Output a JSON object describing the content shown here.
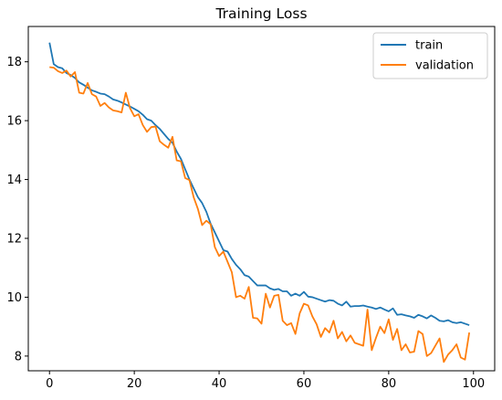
{
  "chart_data": {
    "type": "line",
    "title": "Training Loss",
    "xlabel": "",
    "ylabel": "",
    "xlim": [
      -5,
      105
    ],
    "ylim": [
      7.5,
      19.2
    ],
    "xticks": [
      0,
      20,
      40,
      60,
      80,
      100
    ],
    "yticks": [
      8,
      10,
      12,
      14,
      16,
      18
    ],
    "xtick_labels": [
      "0",
      "20",
      "40",
      "60",
      "80",
      "100"
    ],
    "ytick_labels": [
      "8",
      "10",
      "12",
      "14",
      "16",
      "18"
    ],
    "grid": false,
    "legend_position": "top-right",
    "x": [
      0,
      1,
      2,
      3,
      4,
      5,
      6,
      7,
      8,
      9,
      10,
      11,
      12,
      13,
      14,
      15,
      16,
      17,
      18,
      19,
      20,
      21,
      22,
      23,
      24,
      25,
      26,
      27,
      28,
      29,
      30,
      31,
      32,
      33,
      34,
      35,
      36,
      37,
      38,
      39,
      40,
      41,
      42,
      43,
      44,
      45,
      46,
      47,
      48,
      49,
      50,
      51,
      52,
      53,
      54,
      55,
      56,
      57,
      58,
      59,
      60,
      61,
      62,
      63,
      64,
      65,
      66,
      67,
      68,
      69,
      70,
      71,
      72,
      73,
      74,
      75,
      76,
      77,
      78,
      79,
      80,
      81,
      82,
      83,
      84,
      85,
      86,
      87,
      88,
      89,
      90,
      91,
      92,
      93,
      94,
      95,
      96,
      97,
      98,
      99
    ],
    "series": [
      {
        "name": "train",
        "color": "#1f77b4",
        "values": [
          18.65,
          17.92,
          17.82,
          17.78,
          17.62,
          17.55,
          17.45,
          17.3,
          17.22,
          17.12,
          17.03,
          16.98,
          16.92,
          16.9,
          16.82,
          16.72,
          16.68,
          16.62,
          16.55,
          16.48,
          16.4,
          16.32,
          16.2,
          16.05,
          16.0,
          15.85,
          15.72,
          15.55,
          15.38,
          15.25,
          14.95,
          14.7,
          14.35,
          14.0,
          13.7,
          13.4,
          13.2,
          12.9,
          12.5,
          12.2,
          11.9,
          11.6,
          11.55,
          11.3,
          11.1,
          10.95,
          10.75,
          10.7,
          10.55,
          10.4,
          10.4,
          10.4,
          10.3,
          10.25,
          10.28,
          10.2,
          10.2,
          10.05,
          10.12,
          10.05,
          10.18,
          10.02,
          10.0,
          9.95,
          9.9,
          9.85,
          9.9,
          9.88,
          9.78,
          9.72,
          9.85,
          9.68,
          9.7,
          9.7,
          9.72,
          9.68,
          9.65,
          9.6,
          9.65,
          9.58,
          9.52,
          9.62,
          9.4,
          9.42,
          9.38,
          9.35,
          9.3,
          9.4,
          9.35,
          9.28,
          9.38,
          9.3,
          9.2,
          9.18,
          9.22,
          9.15,
          9.12,
          9.15,
          9.1,
          9.05
        ]
      },
      {
        "name": "validation",
        "color": "#ff7f0e",
        "values": [
          17.82,
          17.8,
          17.68,
          17.62,
          17.7,
          17.5,
          17.65,
          16.95,
          16.92,
          17.28,
          16.9,
          16.82,
          16.5,
          16.6,
          16.45,
          16.35,
          16.32,
          16.28,
          16.95,
          16.42,
          16.15,
          16.22,
          15.85,
          15.62,
          15.78,
          15.8,
          15.3,
          15.18,
          15.08,
          15.45,
          14.65,
          14.62,
          14.05,
          13.98,
          13.4,
          13.0,
          12.45,
          12.6,
          12.48,
          11.7,
          11.4,
          11.55,
          11.2,
          10.85,
          10.0,
          10.05,
          9.95,
          10.35,
          9.3,
          9.28,
          9.1,
          10.12,
          9.65,
          10.05,
          10.08,
          9.2,
          9.05,
          9.12,
          8.75,
          9.45,
          9.78,
          9.72,
          9.35,
          9.08,
          8.65,
          8.95,
          8.8,
          9.2,
          8.6,
          8.82,
          8.5,
          8.7,
          8.45,
          8.4,
          8.35,
          9.58,
          8.2,
          8.62,
          9.0,
          8.78,
          9.25,
          8.55,
          8.92,
          8.2,
          8.4,
          8.12,
          8.15,
          8.85,
          8.75,
          8.0,
          8.1,
          8.35,
          8.6,
          7.8,
          8.05,
          8.2,
          8.4,
          7.95,
          7.88,
          8.8
        ]
      }
    ]
  }
}
